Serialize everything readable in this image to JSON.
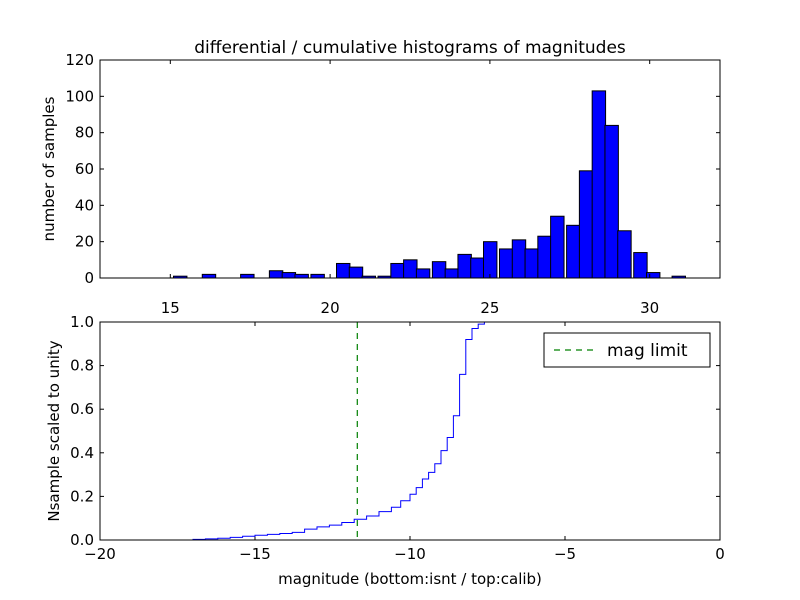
{
  "chart_data": [
    {
      "type": "bar",
      "title": "differential / cumulative histograms of magnitudes",
      "xlabel": "",
      "ylabel": "number of samples",
      "xlim": [
        12.8,
        32.2
      ],
      "ylim": [
        0,
        120
      ],
      "xticks": [
        15,
        20,
        25,
        30
      ],
      "yticks": [
        0,
        20,
        40,
        60,
        80,
        100,
        120
      ],
      "bin_width": 0.42,
      "bar_color": "#0000ff",
      "bin_starts": [
        15.1,
        16.0,
        17.2,
        18.1,
        18.5,
        18.9,
        19.4,
        20.2,
        20.6,
        21.0,
        21.5,
        21.9,
        22.3,
        22.7,
        23.2,
        23.6,
        24.0,
        24.4,
        24.8,
        25.3,
        25.7,
        26.1,
        26.5,
        26.9,
        27.4,
        27.8,
        28.2,
        28.6,
        29.0,
        29.5,
        29.9,
        30.7
      ],
      "values": [
        1,
        2,
        2,
        4,
        3,
        2,
        2,
        8,
        6,
        1,
        1,
        8,
        10,
        5,
        9,
        5,
        13,
        11,
        20,
        16,
        21,
        16,
        23,
        34,
        29,
        59,
        103,
        84,
        26,
        14,
        3,
        1
      ]
    },
    {
      "type": "line",
      "title": "",
      "xlabel": "magnitude (bottom:isnt / top:calib)",
      "ylabel": "Nsample scaled to unity",
      "xlim": [
        -20,
        0
      ],
      "ylim": [
        0.0,
        1.0
      ],
      "xticks": [
        -20,
        -15,
        -10,
        -5,
        0
      ],
      "xtick_labels": [
        "−20",
        "−15",
        "−10",
        "−5",
        "0"
      ],
      "yticks": [
        0.0,
        0.2,
        0.4,
        0.6,
        0.8,
        1.0
      ],
      "ytick_labels": [
        "0.0",
        "0.2",
        "0.4",
        "0.6",
        "0.8",
        "1.0"
      ],
      "legend_position": "top-right",
      "series": [
        {
          "name": "",
          "style": "steps",
          "color": "#0000ff",
          "x": [
            -20.0,
            -17.0,
            -16.6,
            -16.2,
            -15.8,
            -15.4,
            -15.0,
            -14.6,
            -14.2,
            -13.8,
            -13.4,
            -13.0,
            -12.6,
            -12.2,
            -11.8,
            -11.4,
            -11.0,
            -10.6,
            -10.3,
            -10.0,
            -9.8,
            -9.6,
            -9.4,
            -9.2,
            -9.0,
            -8.8,
            -8.6,
            -8.4,
            -8.2,
            -8.0,
            -7.8,
            -7.6,
            -7.4
          ],
          "y": [
            0.0,
            0.003,
            0.005,
            0.008,
            0.012,
            0.017,
            0.022,
            0.026,
            0.03,
            0.035,
            0.05,
            0.06,
            0.068,
            0.08,
            0.095,
            0.11,
            0.13,
            0.15,
            0.18,
            0.21,
            0.24,
            0.28,
            0.31,
            0.35,
            0.41,
            0.47,
            0.57,
            0.76,
            0.92,
            0.97,
            0.99,
            1.0,
            1.0
          ]
        },
        {
          "name": "mag limit",
          "style": "dashed-vertical",
          "color": "#008000",
          "x": -11.7
        }
      ]
    }
  ]
}
